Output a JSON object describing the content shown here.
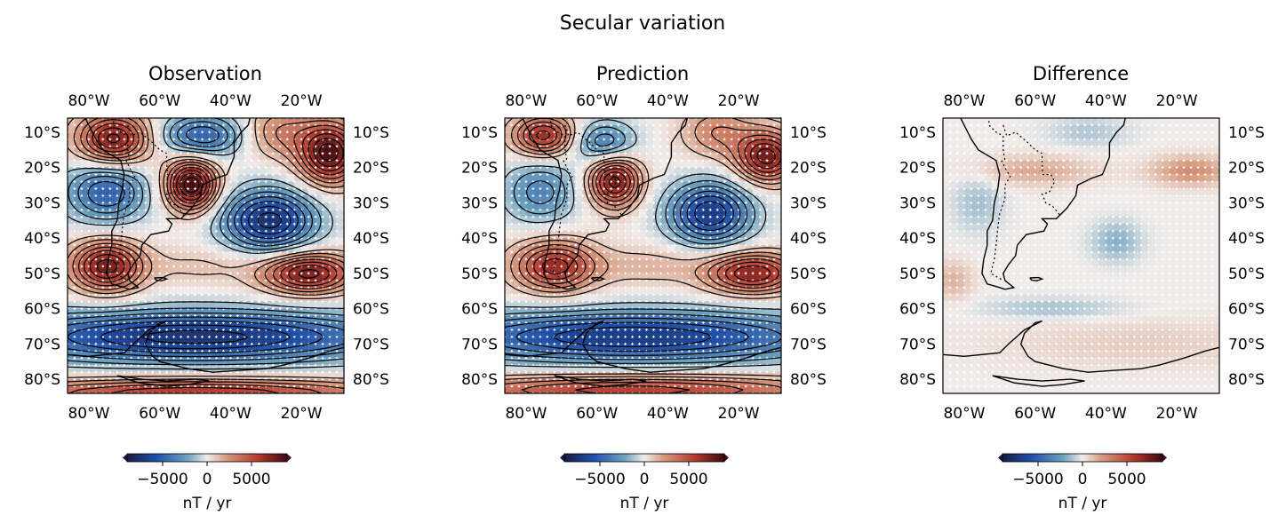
{
  "figure": {
    "suptitle": "Secular variation"
  },
  "chart_data": [
    {
      "type": "scatter",
      "title": "Observation",
      "x_ticks": [
        "80°W",
        "60°W",
        "40°W",
        "20°W"
      ],
      "x_tick_values": [
        -80,
        -60,
        -40,
        -20
      ],
      "y_ticks": [
        "10°S",
        "20°S",
        "30°S",
        "40°S",
        "50°S",
        "60°S",
        "70°S",
        "80°S"
      ],
      "y_tick_values": [
        -10,
        -20,
        -30,
        -40,
        -50,
        -60,
        -70,
        -80
      ],
      "xlim": [
        -86,
        -8
      ],
      "ylim": [
        -84,
        -6
      ],
      "colorbar": {
        "label": "nT / yr",
        "ticks": [
          "−5000",
          "0",
          "5000"
        ],
        "tick_values": [
          -5000,
          0,
          5000
        ],
        "range": [
          -9000,
          9000
        ],
        "extend": "both"
      },
      "colormap": "balance",
      "contours": true,
      "features": [
        {
          "lon": -73,
          "lat": -12,
          "value": 7500,
          "sx": 7,
          "sy": 5
        },
        {
          "lon": -48,
          "lat": -11,
          "value": -5000,
          "sx": 8,
          "sy": 4
        },
        {
          "lon": -26,
          "lat": -10,
          "value": 3000,
          "sx": 7,
          "sy": 5
        },
        {
          "lon": -12,
          "lat": -16,
          "value": 8500,
          "sx": 6,
          "sy": 6
        },
        {
          "lon": -75,
          "lat": -27,
          "value": -5000,
          "sx": 8,
          "sy": 6
        },
        {
          "lon": -51,
          "lat": -25,
          "value": 9000,
          "sx": 5,
          "sy": 5
        },
        {
          "lon": -29,
          "lat": -35,
          "value": -7500,
          "sx": 9,
          "sy": 6
        },
        {
          "lon": -75,
          "lat": -48,
          "value": 7500,
          "sx": 7,
          "sy": 5
        },
        {
          "lon": -18,
          "lat": -50,
          "value": 7500,
          "sx": 9,
          "sy": 4
        },
        {
          "lon": -48,
          "lat": -48,
          "value": 1200,
          "sx": 12,
          "sy": 4
        },
        {
          "lon": -50,
          "lat": -68,
          "value": -7500,
          "sx": 40,
          "sy": 5
        },
        {
          "lon": -50,
          "lat": -84,
          "value": 6000,
          "sx": 40,
          "sy": 3
        }
      ]
    },
    {
      "type": "scatter",
      "title": "Prediction",
      "x_ticks": [
        "80°W",
        "60°W",
        "40°W",
        "20°W"
      ],
      "x_tick_values": [
        -80,
        -60,
        -40,
        -20
      ],
      "y_ticks": [
        "10°S",
        "20°S",
        "30°S",
        "40°S",
        "50°S",
        "60°S",
        "70°S",
        "80°S"
      ],
      "y_tick_values": [
        -10,
        -20,
        -30,
        -40,
        -50,
        -60,
        -70,
        -80
      ],
      "xlim": [
        -86,
        -8
      ],
      "ylim": [
        -84,
        -6
      ],
      "colorbar": {
        "label": "nT / yr",
        "ticks": [
          "−5000",
          "0",
          "5000"
        ],
        "tick_values": [
          -5000,
          0,
          5000
        ],
        "range": [
          -9000,
          9000
        ],
        "extend": "both"
      },
      "colormap": "balance",
      "contours": true,
      "features": [
        {
          "lon": -75,
          "lat": -11,
          "value": 6500,
          "sx": 6,
          "sy": 4
        },
        {
          "lon": -58,
          "lat": -13,
          "value": -4000,
          "sx": 6,
          "sy": 4
        },
        {
          "lon": -26,
          "lat": -10,
          "value": 3000,
          "sx": 7,
          "sy": 5
        },
        {
          "lon": -12,
          "lat": -17,
          "value": 7500,
          "sx": 6,
          "sy": 5
        },
        {
          "lon": -76,
          "lat": -27,
          "value": -3500,
          "sx": 7,
          "sy": 6
        },
        {
          "lon": -55,
          "lat": -24,
          "value": 7500,
          "sx": 5,
          "sy": 5
        },
        {
          "lon": -28,
          "lat": -33,
          "value": -7000,
          "sx": 8,
          "sy": 6
        },
        {
          "lon": -72,
          "lat": -48,
          "value": 6500,
          "sx": 8,
          "sy": 5
        },
        {
          "lon": -16,
          "lat": -50,
          "value": 7000,
          "sx": 9,
          "sy": 4
        },
        {
          "lon": -45,
          "lat": -48,
          "value": 1500,
          "sx": 12,
          "sy": 4
        },
        {
          "lon": -50,
          "lat": -68,
          "value": -7000,
          "sx": 40,
          "sy": 5
        },
        {
          "lon": -50,
          "lat": -83,
          "value": 5500,
          "sx": 40,
          "sy": 3
        }
      ]
    },
    {
      "type": "scatter",
      "title": "Difference",
      "x_ticks": [
        "80°W",
        "60°W",
        "40°W",
        "20°W"
      ],
      "x_tick_values": [
        -80,
        -60,
        -40,
        -20
      ],
      "y_ticks": [
        "10°S",
        "20°S",
        "30°S",
        "40°S",
        "50°S",
        "60°S",
        "70°S",
        "80°S"
      ],
      "y_tick_values": [
        -10,
        -20,
        -30,
        -40,
        -50,
        -60,
        -70,
        -80
      ],
      "xlim": [
        -86,
        -8
      ],
      "ylim": [
        -84,
        -6
      ],
      "colorbar": {
        "label": "nT / yr",
        "ticks": [
          "−5000",
          "0",
          "5000"
        ],
        "tick_values": [
          -5000,
          0,
          5000
        ],
        "range": [
          -9000,
          9000
        ],
        "extend": "both"
      },
      "colormap": "balance",
      "contours": false,
      "features": [
        {
          "lon": -16,
          "lat": -21,
          "value": 2600,
          "sx": 8,
          "sy": 3
        },
        {
          "lon": -60,
          "lat": -21,
          "value": 1800,
          "sx": 12,
          "sy": 3
        },
        {
          "lon": -37,
          "lat": -41,
          "value": -1800,
          "sx": 5,
          "sy": 4
        },
        {
          "lon": -76,
          "lat": -30,
          "value": -1300,
          "sx": 5,
          "sy": 6
        },
        {
          "lon": -55,
          "lat": -60,
          "value": -1300,
          "sx": 14,
          "sy": 2
        },
        {
          "lon": -83,
          "lat": -52,
          "value": 1500,
          "sx": 4,
          "sy": 4
        },
        {
          "lon": -45,
          "lat": -10,
          "value": -1100,
          "sx": 8,
          "sy": 3
        },
        {
          "lon": -30,
          "lat": -70,
          "value": 800,
          "sx": 30,
          "sy": 5
        }
      ]
    }
  ]
}
